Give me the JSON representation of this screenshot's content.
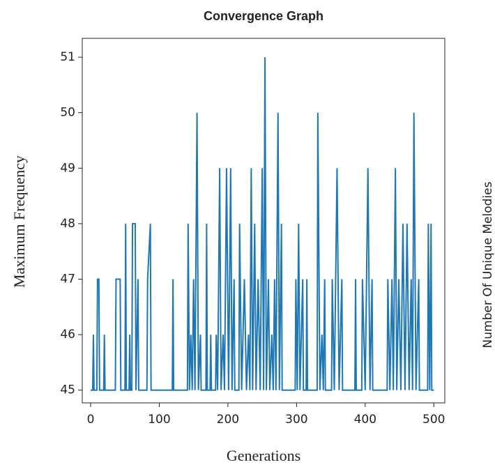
{
  "chart_data": {
    "type": "line",
    "title": "Convergence Graph",
    "xlabel": "Generations",
    "ylabel": "Maximum Frequency",
    "annotations": [
      "Number Of Unique Melodies"
    ],
    "x": [
      0,
      3,
      4,
      5,
      9,
      10,
      12,
      13,
      19,
      20,
      21,
      36,
      37,
      43,
      44,
      50,
      51,
      52,
      56,
      57,
      58,
      60,
      61,
      65,
      66,
      69,
      70,
      82,
      83,
      87,
      88,
      119,
      120,
      121,
      141,
      142,
      144,
      146,
      148,
      150,
      152,
      155,
      157,
      160,
      161,
      168,
      169,
      170,
      174,
      175,
      176,
      182,
      183,
      185,
      188,
      190,
      193,
      195,
      198,
      201,
      204,
      206,
      209,
      210,
      216,
      217,
      220,
      224,
      227,
      230,
      232,
      234,
      236,
      239,
      241,
      244,
      247,
      250,
      252,
      254,
      256,
      259,
      261,
      264,
      266,
      268,
      270,
      273,
      275,
      278,
      279,
      298,
      299,
      301,
      303,
      305,
      309,
      310,
      314,
      315,
      316,
      330,
      331,
      334,
      337,
      339,
      341,
      342,
      351,
      352,
      355,
      359,
      362,
      366,
      367,
      385,
      386,
      387,
      395,
      396,
      400,
      404,
      407,
      410,
      411,
      432,
      433,
      436,
      439,
      441,
      444,
      446,
      449,
      452,
      455,
      458,
      461,
      464,
      467,
      469,
      471,
      474,
      478,
      479,
      491,
      492,
      494,
      496,
      497,
      500
    ],
    "series": [
      {
        "color": "#1f77b4",
        "values": [
          45,
          45,
          46,
          45,
          45,
          47,
          47,
          45,
          45,
          46,
          45,
          45,
          47,
          47,
          45,
          45,
          48,
          45,
          45,
          46,
          45,
          45,
          48,
          48,
          45,
          47,
          45,
          45,
          47,
          48,
          45,
          45,
          47,
          45,
          45,
          48,
          45,
          46,
          45,
          47,
          45,
          50,
          45,
          46,
          45,
          45,
          48,
          45,
          45,
          46,
          45,
          45,
          46,
          45,
          49,
          45,
          46,
          45,
          49,
          45,
          49,
          45,
          47,
          45,
          45,
          48,
          45,
          47,
          45,
          46,
          45,
          49,
          45,
          48,
          45,
          47,
          45,
          49,
          45,
          51,
          45,
          47,
          45,
          46,
          45,
          47,
          45,
          50,
          45,
          48,
          45,
          45,
          47,
          45,
          48,
          45,
          47,
          45,
          45,
          47,
          45,
          45,
          50,
          45,
          46,
          45,
          47,
          45,
          45,
          47,
          45,
          49,
          45,
          47,
          45,
          45,
          47,
          45,
          45,
          47,
          45,
          49,
          45,
          47,
          45,
          45,
          47,
          45,
          47,
          45,
          49,
          45,
          47,
          45,
          48,
          45,
          48,
          45,
          47,
          45,
          50,
          45,
          47,
          45,
          45,
          48,
          45,
          48,
          45,
          45
        ]
      }
    ],
    "xlim": [
      -12.2,
      516
    ],
    "ylim": [
      44.77,
      51.34
    ],
    "xticks": [
      0,
      100,
      200,
      300,
      400,
      500
    ],
    "yticks": [
      45,
      46,
      47,
      48,
      49,
      50,
      51
    ],
    "grid": false
  }
}
